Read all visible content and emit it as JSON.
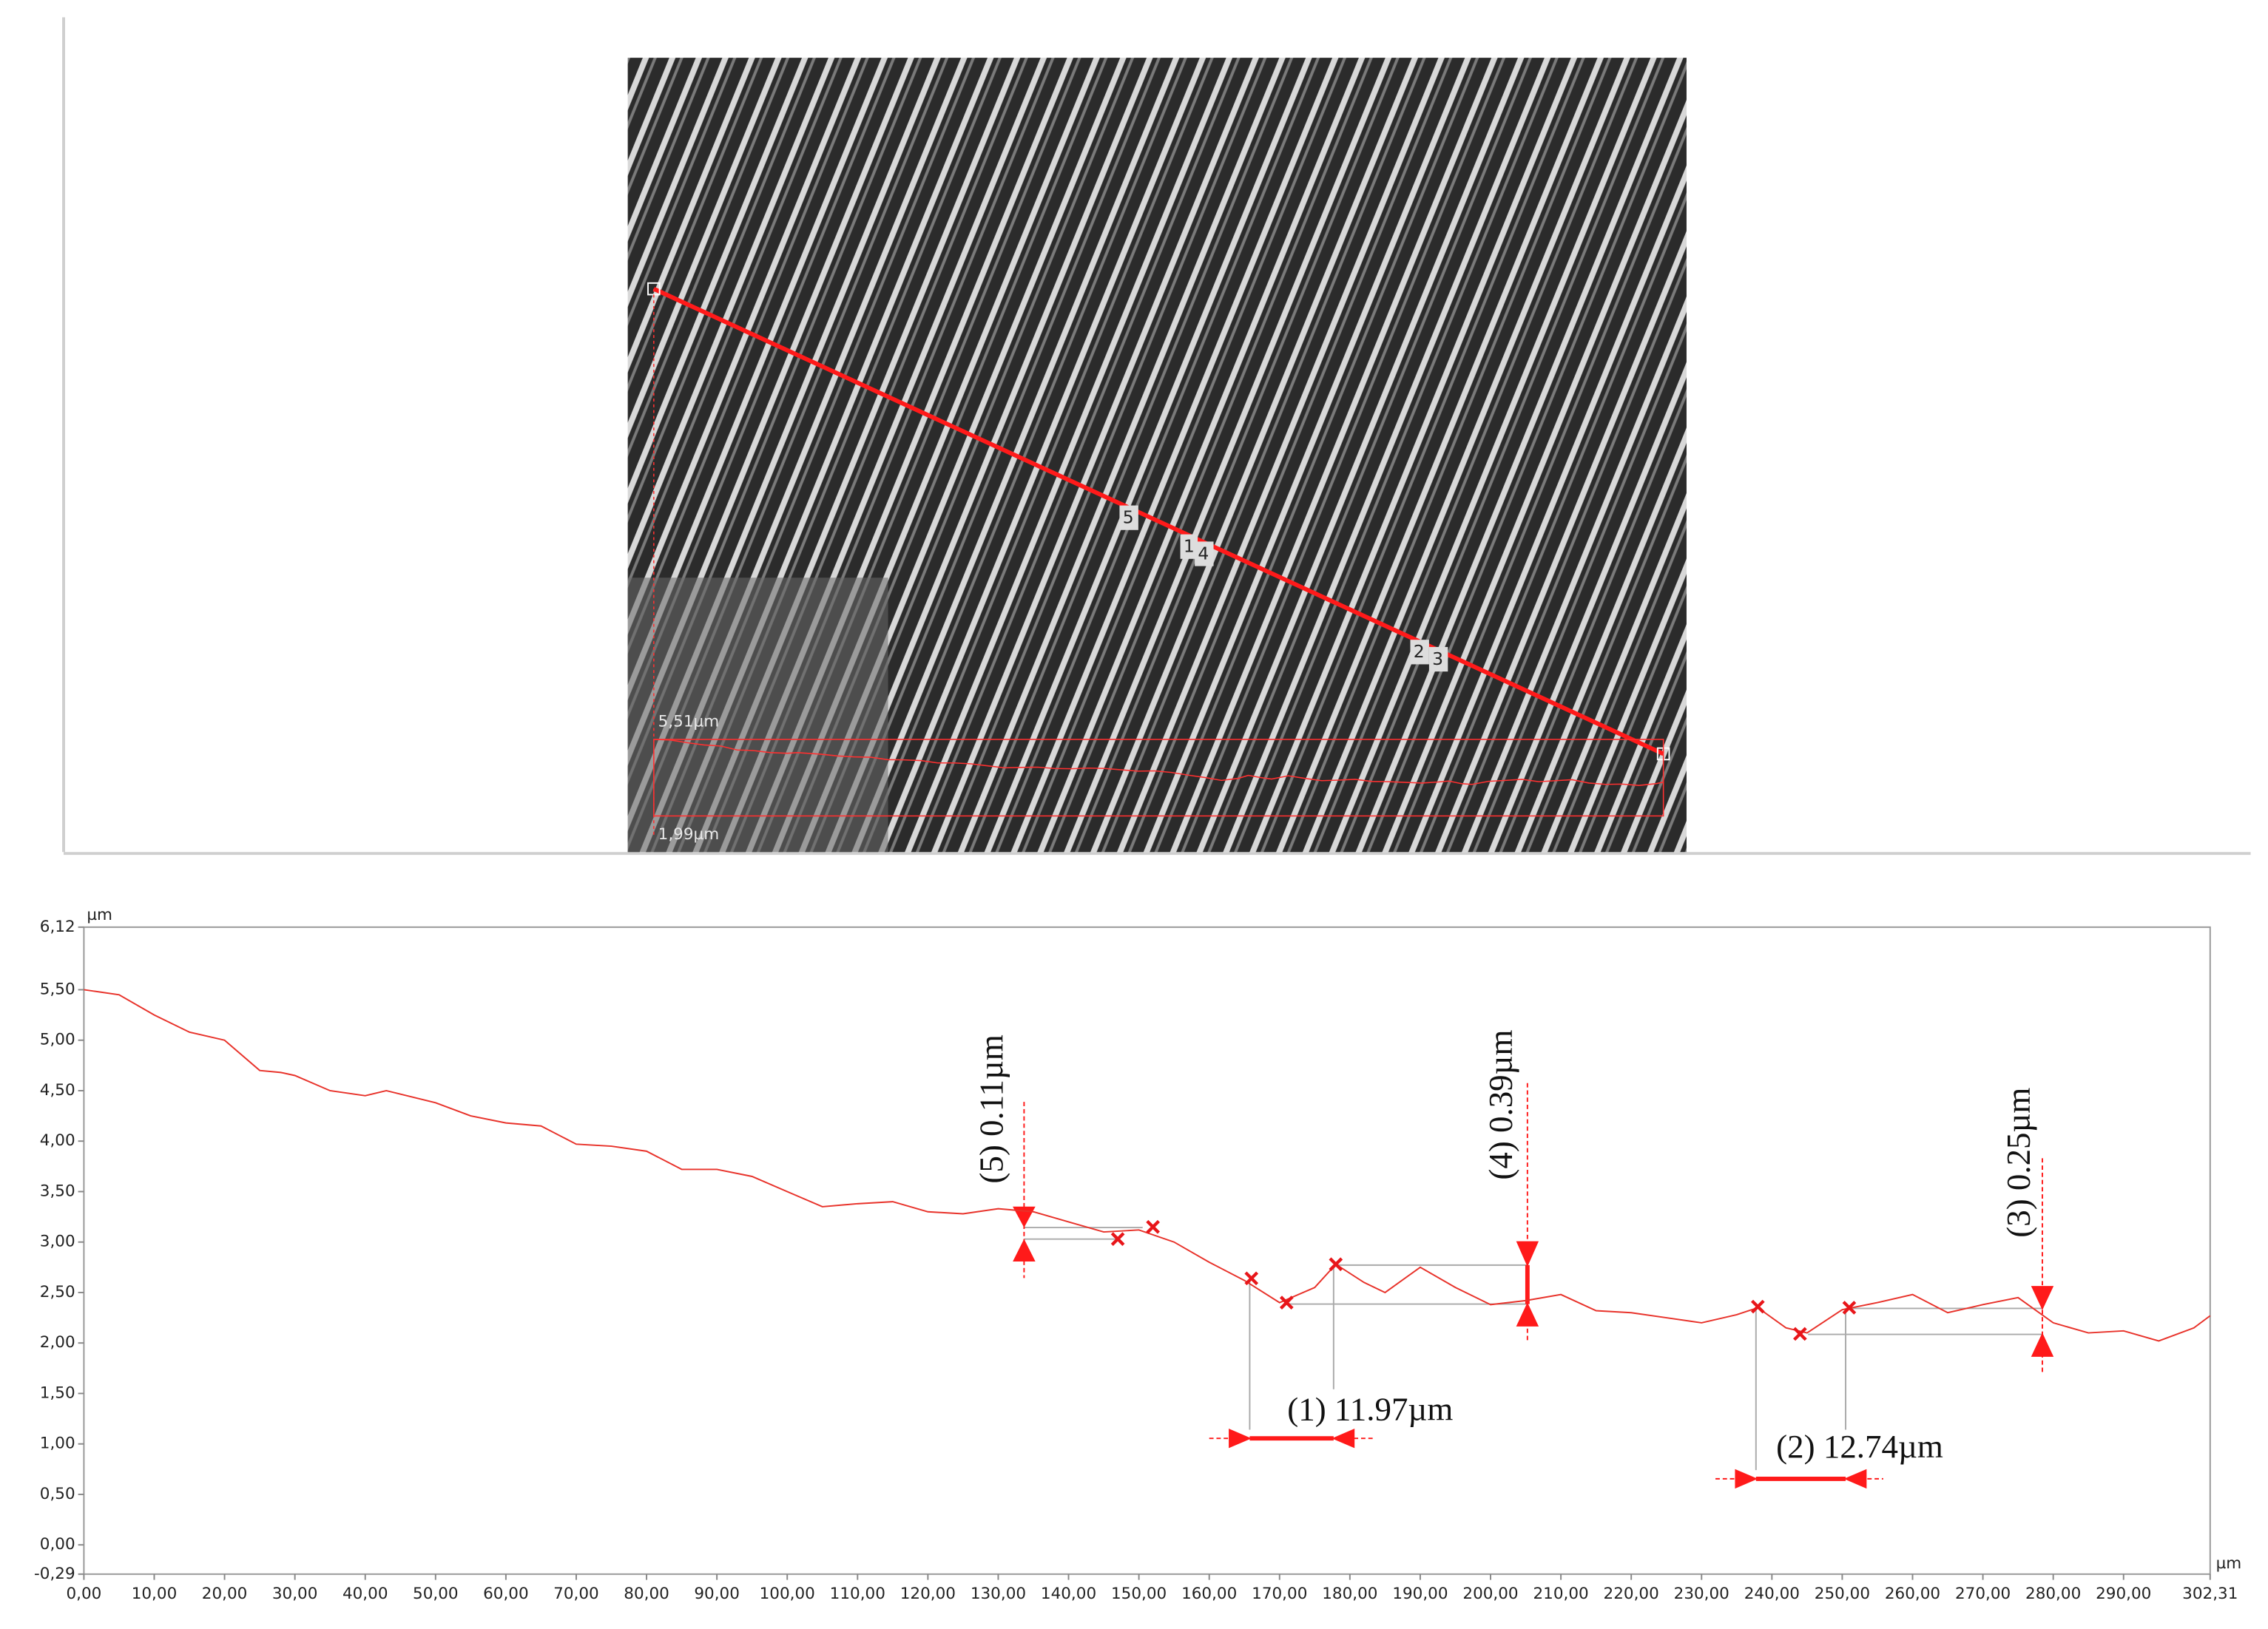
{
  "micrograph": {
    "markers": [
      "5",
      "1",
      "4",
      "2",
      "3"
    ],
    "top_label": "5,51µm",
    "bottom_label": "1,99µm"
  },
  "chart_data": {
    "type": "line",
    "ylabel": "µm",
    "xlabel": "µm",
    "xlim": [
      0,
      302.31
    ],
    "ylim": [
      -0.29,
      6.12
    ],
    "xticks": [
      {
        "value": 0,
        "label": "0,00"
      },
      {
        "value": 10,
        "label": "10,00"
      },
      {
        "value": 20,
        "label": "20,00"
      },
      {
        "value": 30,
        "label": "30,00"
      },
      {
        "value": 40,
        "label": "40,00"
      },
      {
        "value": 50,
        "label": "50,00"
      },
      {
        "value": 60,
        "label": "60,00"
      },
      {
        "value": 70,
        "label": "70,00"
      },
      {
        "value": 80,
        "label": "80,00"
      },
      {
        "value": 90,
        "label": "90,00"
      },
      {
        "value": 100,
        "label": "100,00"
      },
      {
        "value": 110,
        "label": "110,00"
      },
      {
        "value": 120,
        "label": "120,00"
      },
      {
        "value": 130,
        "label": "130,00"
      },
      {
        "value": 140,
        "label": "140,00"
      },
      {
        "value": 150,
        "label": "150,00"
      },
      {
        "value": 160,
        "label": "160,00"
      },
      {
        "value": 170,
        "label": "170,00"
      },
      {
        "value": 180,
        "label": "180,00"
      },
      {
        "value": 190,
        "label": "190,00"
      },
      {
        "value": 200,
        "label": "200,00"
      },
      {
        "value": 210,
        "label": "210,00"
      },
      {
        "value": 220,
        "label": "220,00"
      },
      {
        "value": 230,
        "label": "230,00"
      },
      {
        "value": 240,
        "label": "240,00"
      },
      {
        "value": 250,
        "label": "250,00"
      },
      {
        "value": 260,
        "label": "260,00"
      },
      {
        "value": 270,
        "label": "270,00"
      },
      {
        "value": 280,
        "label": "280,00"
      },
      {
        "value": 290,
        "label": "290,00"
      },
      {
        "value": 302.31,
        "label": "302,31"
      }
    ],
    "yticks": [
      {
        "value": -0.29,
        "label": "-0,29"
      },
      {
        "value": 0,
        "label": "0,00"
      },
      {
        "value": 0.5,
        "label": "0,50"
      },
      {
        "value": 1,
        "label": "1,00"
      },
      {
        "value": 1.5,
        "label": "1,50"
      },
      {
        "value": 2,
        "label": "2,00"
      },
      {
        "value": 2.5,
        "label": "2,50"
      },
      {
        "value": 3,
        "label": "3,00"
      },
      {
        "value": 3.5,
        "label": "3,50"
      },
      {
        "value": 4,
        "label": "4,00"
      },
      {
        "value": 4.5,
        "label": "4,50"
      },
      {
        "value": 5,
        "label": "5,00"
      },
      {
        "value": 5.5,
        "label": "5,50"
      },
      {
        "value": 6.12,
        "label": "6,12"
      }
    ],
    "color": "#e8322a",
    "x": [
      0,
      5,
      10,
      15,
      20,
      25,
      28,
      30,
      35,
      40,
      43,
      50,
      55,
      60,
      65,
      70,
      75,
      80,
      85,
      90,
      95,
      100,
      105,
      110,
      115,
      120,
      125,
      130,
      135,
      140,
      145,
      150,
      155,
      160,
      165,
      170,
      175,
      178,
      182,
      185,
      190,
      195,
      200,
      205,
      210,
      215,
      220,
      225,
      230,
      235,
      238,
      242,
      245,
      250,
      255,
      260,
      265,
      270,
      275,
      280,
      285,
      290,
      295,
      300,
      302.31
    ],
    "values": [
      5.5,
      5.45,
      5.25,
      5.08,
      5.0,
      4.7,
      4.68,
      4.65,
      4.5,
      4.45,
      4.5,
      4.38,
      4.25,
      4.18,
      4.15,
      3.97,
      3.95,
      3.9,
      3.72,
      3.72,
      3.65,
      3.5,
      3.35,
      3.38,
      3.4,
      3.3,
      3.28,
      3.33,
      3.3,
      3.2,
      3.1,
      3.12,
      3.0,
      2.8,
      2.62,
      2.4,
      2.55,
      2.78,
      2.6,
      2.5,
      2.75,
      2.55,
      2.38,
      2.42,
      2.48,
      2.32,
      2.3,
      2.25,
      2.2,
      2.28,
      2.35,
      2.15,
      2.1,
      2.33,
      2.4,
      2.48,
      2.3,
      2.38,
      2.45,
      2.2,
      2.1,
      2.12,
      2.02,
      2.15,
      2.27
    ],
    "points": {
      "x": [
        147,
        152,
        166,
        171,
        178,
        238,
        244,
        251
      ],
      "values": [
        3.03,
        3.15,
        2.64,
        2.4,
        2.78,
        2.36,
        2.09,
        2.35
      ]
    },
    "annotations": [
      "(5) 0.11µm",
      "(4) 0.39µm",
      "(3) 0.25µm",
      "(1) 11.97µm",
      "(2) 12.74µm"
    ]
  }
}
